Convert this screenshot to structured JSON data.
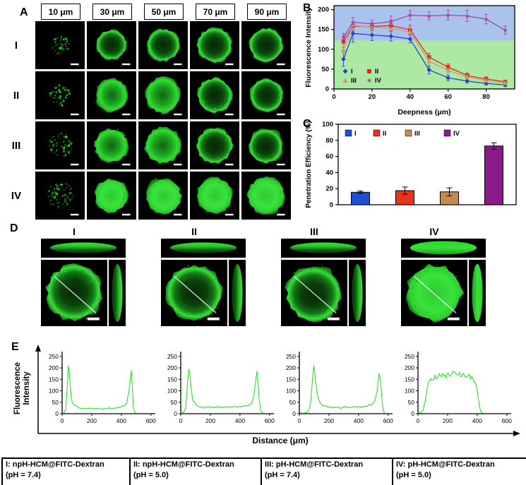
{
  "panel_a": {
    "label": "A",
    "column_headers": [
      "10 μm",
      "30 μm",
      "50 μm",
      "70 μm",
      "90 μm"
    ],
    "rows": [
      {
        "label": "I",
        "cells": [
          {
            "style": "speckle",
            "r": 0.38
          },
          {
            "style": "ring",
            "r": 0.62
          },
          {
            "style": "ring",
            "r": 0.68
          },
          {
            "style": "ring",
            "r": 0.72
          },
          {
            "style": "ring",
            "r": 0.7
          }
        ]
      },
      {
        "label": "II",
        "cells": [
          {
            "style": "speckle",
            "r": 0.45
          },
          {
            "style": "blob",
            "r": 0.68
          },
          {
            "style": "blob",
            "r": 0.74
          },
          {
            "style": "ring",
            "r": 0.72
          },
          {
            "style": "ring",
            "r": 0.7
          }
        ]
      },
      {
        "label": "III",
        "cells": [
          {
            "style": "speckle",
            "r": 0.5
          },
          {
            "style": "blob",
            "r": 0.7
          },
          {
            "style": "blob",
            "r": 0.76
          },
          {
            "style": "ring",
            "r": 0.74
          },
          {
            "style": "ring",
            "r": 0.72
          }
        ]
      },
      {
        "label": "IV",
        "cells": [
          {
            "style": "speckle",
            "r": 0.55
          },
          {
            "style": "filled",
            "r": 0.7
          },
          {
            "style": "filled",
            "r": 0.74
          },
          {
            "style": "filled",
            "r": 0.74
          },
          {
            "style": "filled",
            "r": 0.78
          }
        ]
      }
    ]
  },
  "panel_b": {
    "label": "B"
  },
  "panel_c": {
    "label": "C"
  },
  "panel_d": {
    "label": "D",
    "groups": [
      {
        "label": "I",
        "style": "ring"
      },
      {
        "label": "II",
        "style": "ring"
      },
      {
        "label": "III",
        "style": "ring"
      },
      {
        "label": "IV",
        "style": "filled"
      }
    ]
  },
  "panel_e": {
    "label": "E",
    "ylabel_line1": "Fluorescence",
    "ylabel_line2": "Intensity",
    "xlabel": "Distance (μm)"
  },
  "footer": {
    "items": [
      {
        "line1": "I: npH-HCM@FITC-Dextran",
        "line2": "(pH = 7.4)"
      },
      {
        "line1": "II: npH-HCM@FITC-Dextran",
        "line2": "(pH = 5.0)"
      },
      {
        "line1": "III: pH-HCM@FITC-Dextran",
        "line2": "(pH = 7.4)"
      },
      {
        "line1": "IV: pH-HCM@FITC-Dextran",
        "line2": "(pH = 5.0)"
      }
    ]
  },
  "chart_data": [
    {
      "id": "B",
      "type": "line",
      "xlabel": "Deepness (μm)",
      "ylabel": "Fluorescence Intensity",
      "xlim": [
        0,
        95
      ],
      "ylim": [
        0,
        210
      ],
      "xticks": [
        0,
        20,
        40,
        60,
        80
      ],
      "yticks": [
        0,
        50,
        100,
        150,
        200
      ],
      "background_regions": [
        {
          "from": 122,
          "to": 210,
          "color": "#A9C3EC"
        },
        {
          "from": 0,
          "to": 122,
          "color": "#ADE8A5"
        }
      ],
      "x": [
        5,
        10,
        20,
        30,
        40,
        50,
        60,
        70,
        80,
        90
      ],
      "series": [
        {
          "name": "I",
          "color": "#2244CC",
          "marker": "diamond",
          "values": [
            75,
            140,
            136,
            133,
            126,
            48,
            28,
            20,
            14,
            10
          ],
          "errors": [
            18,
            22,
            14,
            12,
            10,
            10,
            7,
            5,
            4,
            4
          ]
        },
        {
          "name": "II",
          "color": "#E02818",
          "marker": "square",
          "values": [
            120,
            158,
            157,
            160,
            149,
            80,
            55,
            34,
            25,
            18
          ],
          "errors": [
            15,
            12,
            10,
            14,
            12,
            10,
            8,
            6,
            5,
            4
          ]
        },
        {
          "name": "III",
          "color": "#D09A72",
          "marker": "triangle",
          "values": [
            100,
            160,
            156,
            153,
            143,
            70,
            47,
            30,
            21,
            15
          ],
          "errors": [
            12,
            10,
            12,
            10,
            10,
            8,
            6,
            5,
            4,
            4
          ]
        },
        {
          "name": "IV",
          "color": "#A0459F",
          "marker": "star",
          "values": [
            130,
            168,
            164,
            170,
            186,
            184,
            186,
            184,
            176,
            148
          ],
          "errors": [
            10,
            12,
            10,
            14,
            12,
            10,
            12,
            14,
            12,
            10
          ]
        }
      ],
      "legend_position": "lower-left",
      "grid": false
    },
    {
      "id": "C",
      "type": "bar",
      "ylabel": "Penetration Efficiency (%)",
      "ylim": [
        0,
        100
      ],
      "yticks": [
        0,
        20,
        40,
        60,
        80,
        100
      ],
      "categories": [
        "I",
        "II",
        "III",
        "IV"
      ],
      "values": [
        15.5,
        17.5,
        16,
        73
      ],
      "errors": [
        1.5,
        4.5,
        5,
        4
      ],
      "colors": [
        "#1F4FD0",
        "#E83418",
        "#C08B55",
        "#8B1A8B"
      ],
      "legend_position": "top",
      "grid": false
    },
    {
      "id": "E-I",
      "type": "line",
      "name": "I",
      "ylim": [
        0,
        265
      ],
      "xlim": [
        0,
        620
      ],
      "yticks": [
        0,
        50,
        100,
        150,
        200,
        250
      ],
      "xticks": [
        0,
        200,
        400,
        600
      ],
      "color": "#2FE02F",
      "points": [
        [
          0,
          2
        ],
        [
          15,
          5
        ],
        [
          25,
          20
        ],
        [
          35,
          120
        ],
        [
          42,
          205
        ],
        [
          48,
          180
        ],
        [
          55,
          115
        ],
        [
          62,
          70
        ],
        [
          70,
          50
        ],
        [
          80,
          40
        ],
        [
          95,
          32
        ],
        [
          110,
          28
        ],
        [
          130,
          25
        ],
        [
          160,
          22
        ],
        [
          190,
          25
        ],
        [
          220,
          20
        ],
        [
          250,
          24
        ],
        [
          280,
          21
        ],
        [
          310,
          25
        ],
        [
          340,
          22
        ],
        [
          370,
          26
        ],
        [
          400,
          30
        ],
        [
          420,
          35
        ],
        [
          435,
          45
        ],
        [
          450,
          90
        ],
        [
          460,
          150
        ],
        [
          468,
          190
        ],
        [
          474,
          120
        ],
        [
          480,
          40
        ],
        [
          488,
          8
        ],
        [
          500,
          3
        ]
      ]
    },
    {
      "id": "E-II",
      "type": "line",
      "name": "II",
      "ylim": [
        0,
        265
      ],
      "xlim": [
        0,
        620
      ],
      "yticks": [
        0,
        50,
        100,
        150,
        200,
        250
      ],
      "xticks": [
        0,
        200,
        400,
        600
      ],
      "color": "#2FE02F",
      "points": [
        [
          0,
          2
        ],
        [
          20,
          6
        ],
        [
          35,
          25
        ],
        [
          45,
          130
        ],
        [
          55,
          205
        ],
        [
          62,
          165
        ],
        [
          70,
          108
        ],
        [
          80,
          65
        ],
        [
          95,
          45
        ],
        [
          110,
          35
        ],
        [
          130,
          30
        ],
        [
          160,
          27
        ],
        [
          190,
          30
        ],
        [
          220,
          26
        ],
        [
          250,
          30
        ],
        [
          280,
          27
        ],
        [
          310,
          31
        ],
        [
          340,
          28
        ],
        [
          370,
          32
        ],
        [
          400,
          30
        ],
        [
          430,
          34
        ],
        [
          460,
          38
        ],
        [
          480,
          45
        ],
        [
          495,
          80
        ],
        [
          505,
          140
        ],
        [
          515,
          195
        ],
        [
          522,
          145
        ],
        [
          530,
          60
        ],
        [
          540,
          10
        ],
        [
          555,
          3
        ]
      ]
    },
    {
      "id": "E-III",
      "type": "line",
      "name": "III",
      "ylim": [
        0,
        265
      ],
      "xlim": [
        0,
        620
      ],
      "yticks": [
        0,
        50,
        100,
        150,
        200,
        250
      ],
      "xticks": [
        0,
        200,
        400,
        600
      ],
      "color": "#2FE02F",
      "points": [
        [
          0,
          2
        ],
        [
          40,
          5
        ],
        [
          60,
          10
        ],
        [
          75,
          40
        ],
        [
          88,
          140
        ],
        [
          98,
          205
        ],
        [
          108,
          158
        ],
        [
          118,
          95
        ],
        [
          130,
          60
        ],
        [
          145,
          45
        ],
        [
          165,
          35
        ],
        [
          190,
          30
        ],
        [
          220,
          27
        ],
        [
          250,
          30
        ],
        [
          280,
          26
        ],
        [
          310,
          29
        ],
        [
          340,
          27
        ],
        [
          370,
          31
        ],
        [
          400,
          28
        ],
        [
          430,
          32
        ],
        [
          460,
          35
        ],
        [
          490,
          40
        ],
        [
          510,
          55
        ],
        [
          525,
          100
        ],
        [
          538,
          180
        ],
        [
          548,
          155
        ],
        [
          556,
          80
        ],
        [
          565,
          15
        ],
        [
          575,
          3
        ]
      ]
    },
    {
      "id": "E-IV",
      "type": "line",
      "name": "IV",
      "ylim": [
        0,
        265
      ],
      "xlim": [
        0,
        620
      ],
      "yticks": [
        0,
        50,
        100,
        150,
        200,
        250
      ],
      "xticks": [
        0,
        200,
        400,
        600
      ],
      "color": "#2FE02F",
      "points": [
        [
          0,
          2
        ],
        [
          20,
          5
        ],
        [
          35,
          15
        ],
        [
          50,
          60
        ],
        [
          60,
          110
        ],
        [
          70,
          140
        ],
        [
          85,
          155
        ],
        [
          100,
          150
        ],
        [
          115,
          165
        ],
        [
          130,
          155
        ],
        [
          145,
          170
        ],
        [
          160,
          160
        ],
        [
          175,
          175
        ],
        [
          190,
          165
        ],
        [
          205,
          178
        ],
        [
          220,
          170
        ],
        [
          235,
          180
        ],
        [
          250,
          172
        ],
        [
          265,
          168
        ],
        [
          280,
          175
        ],
        [
          295,
          165
        ],
        [
          310,
          172
        ],
        [
          325,
          160
        ],
        [
          340,
          168
        ],
        [
          355,
          158
        ],
        [
          370,
          150
        ],
        [
          385,
          140
        ],
        [
          395,
          120
        ],
        [
          405,
          80
        ],
        [
          415,
          30
        ],
        [
          425,
          8
        ],
        [
          440,
          3
        ]
      ]
    }
  ]
}
